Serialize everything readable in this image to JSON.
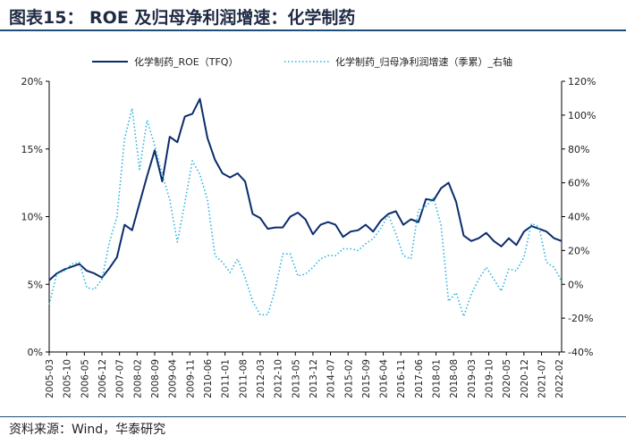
{
  "header": {
    "title": "图表15： ROE 及归母净利润增速：化学制药"
  },
  "footer": {
    "source": "资料来源：Wind，华泰研究"
  },
  "colors": {
    "roe": "#0b2c6b",
    "growth": "#2bb3df",
    "axis": "#000000"
  },
  "chart_data": {
    "type": "line",
    "legend": {
      "position": "top",
      "entries": [
        "化学制药_ROE（TFQ）",
        "化学制药_归母净利润增速（季累）_右轴"
      ]
    },
    "x": [
      "2005-03",
      "2005-06",
      "2005-09",
      "2005-12",
      "2006-03",
      "2006-06",
      "2006-09",
      "2006-12",
      "2007-03",
      "2007-06",
      "2007-09",
      "2007-12",
      "2008-03",
      "2008-06",
      "2008-09",
      "2008-12",
      "2009-03",
      "2009-06",
      "2009-09",
      "2009-12",
      "2010-03",
      "2010-06",
      "2010-09",
      "2010-12",
      "2011-03",
      "2011-06",
      "2011-09",
      "2011-12",
      "2012-03",
      "2012-06",
      "2012-09",
      "2012-12",
      "2013-03",
      "2013-06",
      "2013-09",
      "2013-12",
      "2014-03",
      "2014-06",
      "2014-09",
      "2014-12",
      "2015-03",
      "2015-06",
      "2015-09",
      "2015-12",
      "2016-03",
      "2016-06",
      "2016-09",
      "2016-12",
      "2017-03",
      "2017-06",
      "2017-09",
      "2017-12",
      "2018-03",
      "2018-06",
      "2018-09",
      "2018-12",
      "2019-03",
      "2019-06",
      "2019-09",
      "2019-12",
      "2020-03",
      "2020-06",
      "2020-09",
      "2020-12",
      "2021-03",
      "2021-06",
      "2021-09",
      "2021-12",
      "2022-03"
    ],
    "x_tick_labels": [
      "2005-03",
      "2005-10",
      "2006-05",
      "2006-12",
      "2007-07",
      "2008-02",
      "2008-09",
      "2009-04",
      "2009-11",
      "2010-06",
      "2011-01",
      "2011-08",
      "2012-03",
      "2012-10",
      "2013-05",
      "2013-12",
      "2014-07",
      "2015-02",
      "2015-09",
      "2016-04",
      "2016-11",
      "2017-06",
      "2018-01",
      "2018-08",
      "2019-03",
      "2019-10",
      "2020-05",
      "2020-12",
      "2021-07",
      "2022-02"
    ],
    "y_left": {
      "ylim": [
        0,
        20
      ],
      "ticks": [
        "0%",
        "5%",
        "10%",
        "15%",
        "20%"
      ]
    },
    "y_right": {
      "ylim": [
        -40,
        120
      ],
      "ticks": [
        "-40%",
        "-20%",
        "0%",
        "20%",
        "40%",
        "60%",
        "80%",
        "100%",
        "120%"
      ]
    },
    "series": [
      {
        "name": "化学制药_ROE（TFQ）",
        "axis": "left",
        "style": "solid",
        "values": [
          5.3,
          5.8,
          6.1,
          6.3,
          6.5,
          6.0,
          5.8,
          5.5,
          6.2,
          7.0,
          9.4,
          9.0,
          11.0,
          13.0,
          14.9,
          12.6,
          15.9,
          15.5,
          17.4,
          17.6,
          18.7,
          15.8,
          14.2,
          13.2,
          12.9,
          13.2,
          12.6,
          10.2,
          9.9,
          9.1,
          9.2,
          9.2,
          10.0,
          10.3,
          9.8,
          8.7,
          9.4,
          9.6,
          9.4,
          8.5,
          8.9,
          9.0,
          9.4,
          8.9,
          9.7,
          10.2,
          10.4,
          9.4,
          9.8,
          9.6,
          11.3,
          11.2,
          12.1,
          12.5,
          11.1,
          8.6,
          8.2,
          8.4,
          8.8,
          8.2,
          7.8,
          8.4,
          7.9,
          8.9,
          9.3,
          9.1,
          8.9,
          8.4,
          8.2
        ]
      },
      {
        "name": "化学制药_归母净利润增速（季累）_右轴",
        "axis": "right",
        "style": "dotted",
        "values": [
          -12,
          6,
          8,
          12,
          13,
          -2,
          -3,
          3,
          25,
          40,
          86,
          104,
          68,
          97,
          82,
          65,
          50,
          25,
          48,
          73,
          65,
          50,
          17,
          13,
          7,
          15,
          4,
          -10,
          -18,
          -18,
          -3,
          18,
          18,
          5,
          6,
          10,
          15,
          17,
          17,
          21,
          21,
          20,
          24,
          27,
          33,
          41,
          30,
          17,
          15,
          44,
          46,
          51,
          35,
          -10,
          -5,
          -19,
          -6,
          3,
          10,
          3,
          -4,
          9,
          8,
          16,
          36,
          34,
          13,
          10,
          2
        ]
      }
    ]
  }
}
